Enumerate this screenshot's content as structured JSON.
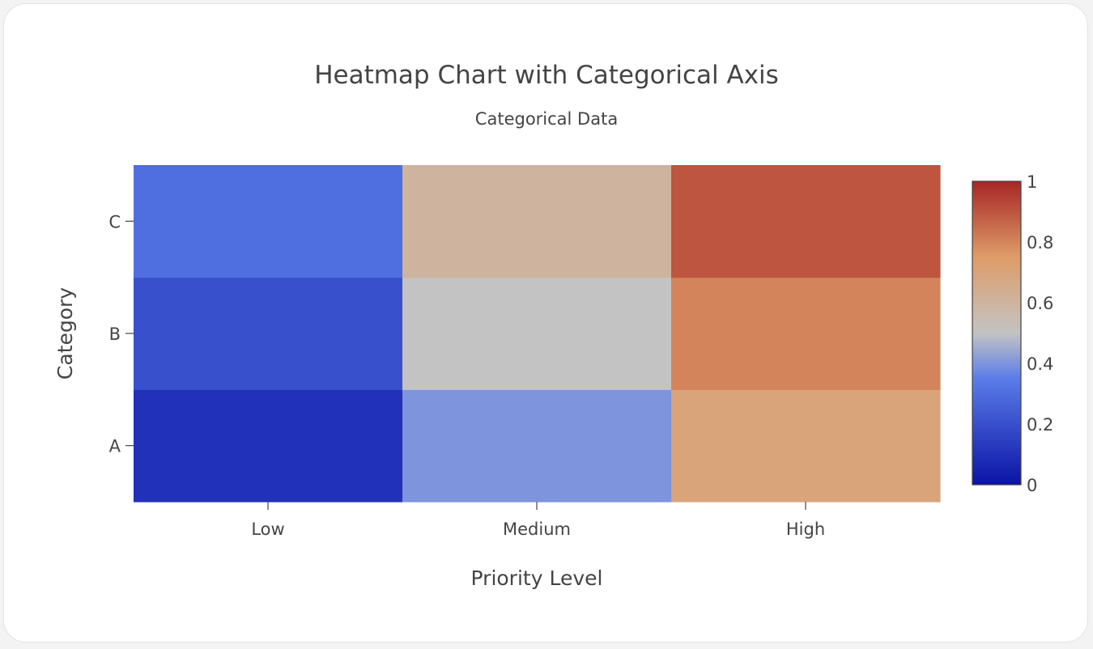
{
  "chart_data": {
    "type": "heatmap",
    "title": "Heatmap Chart with Categorical Axis",
    "subtitle": "Categorical Data",
    "xlabel": "Priority Level",
    "ylabel": "Category",
    "x": [
      "Low",
      "Medium",
      "High"
    ],
    "y": [
      "A",
      "B",
      "C"
    ],
    "z": [
      [
        0.1,
        0.4,
        0.7
      ],
      [
        0.2,
        0.5,
        0.8
      ],
      [
        0.3,
        0.6,
        0.9
      ]
    ],
    "colorscale": "coolwarm",
    "zmin": 0,
    "zmax": 1,
    "colorbar": {
      "ticks": [
        0,
        0.2,
        0.4,
        0.6,
        0.8,
        1
      ],
      "tick_labels": [
        "0",
        "0.2",
        "0.4",
        "0.6",
        "0.8",
        "1"
      ]
    },
    "colorscale_stops": [
      [
        0.0,
        "#0a13a6"
      ],
      [
        0.35,
        "#5b7de8"
      ],
      [
        0.5,
        "#c3c3c3"
      ],
      [
        0.75,
        "#de9c68"
      ],
      [
        1.0,
        "#a72626"
      ]
    ]
  }
}
